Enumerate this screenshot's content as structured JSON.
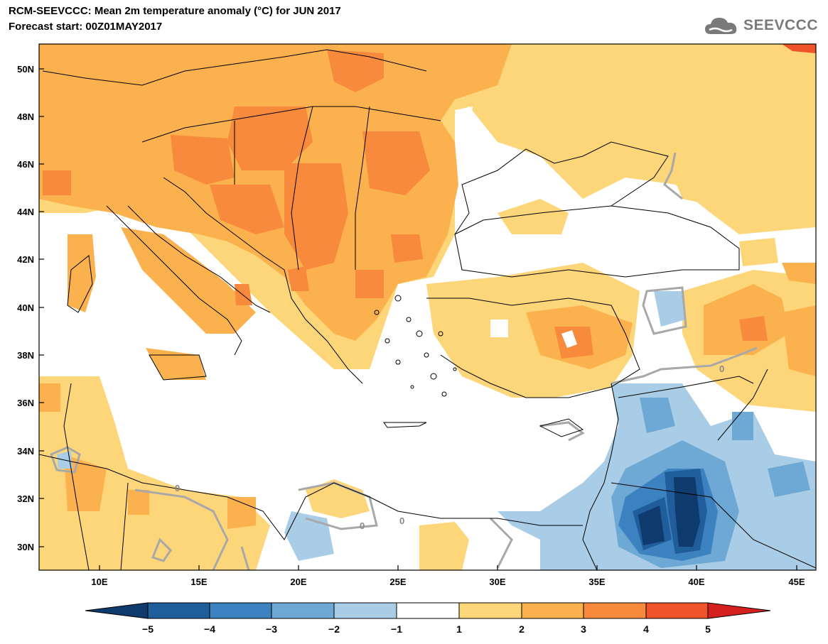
{
  "header": {
    "title_line1": "RCM-SEEVCCC: Mean 2m temperature anomaly (°C) for JUN 2017",
    "title_line2": "Forecast start: 00Z01MAY2017",
    "logo_text": "SEEVCCC"
  },
  "map": {
    "lat_labels": [
      "50N",
      "48N",
      "46N",
      "44N",
      "42N",
      "40N",
      "38N",
      "36N",
      "34N",
      "32N",
      "30N"
    ],
    "lon_labels": [
      "10E",
      "15E",
      "20E",
      "25E",
      "30E",
      "35E",
      "40E",
      "45E"
    ],
    "contour_label": "0"
  },
  "colorbar": {
    "ticks": [
      "−5",
      "−4",
      "−3",
      "−2",
      "−1",
      "1",
      "2",
      "3",
      "4",
      "5"
    ],
    "colors": {
      "below_-5": "#0e3a6e",
      "-5_-4": "#1f5e9a",
      "-4_-3": "#3d82c0",
      "-3_-2": "#6ea8d4",
      "-2_-1": "#a9cde6",
      "-1_1": "#ffffff",
      "1_2": "#fdd67a",
      "2_3": "#fbb24e",
      "3_4": "#f78a3c",
      "4_5": "#f0532a",
      "above_5": "#d52020"
    }
  }
}
